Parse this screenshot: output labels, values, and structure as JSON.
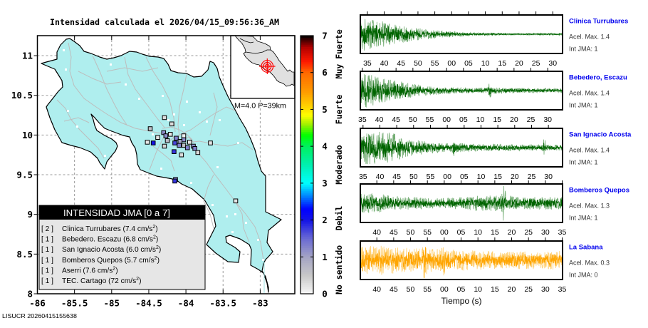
{
  "title": "Intensidad calculada el 2026/04/15_09:56:36_AM",
  "footer_id": "LISUCR 20260415155638",
  "map": {
    "lon_range": [
      -86,
      -82.534
    ],
    "lat_range": [
      8,
      11.252
    ],
    "x_ticks": [
      {
        "value": -86,
        "label": "-86"
      },
      {
        "value": -85.5,
        "label": "-85.5"
      },
      {
        "value": -85,
        "label": "-85"
      },
      {
        "value": -84.5,
        "label": "-84.5"
      },
      {
        "value": -84,
        "label": "-84"
      },
      {
        "value": -83.5,
        "label": "-83.5"
      },
      {
        "value": -83,
        "label": "-83"
      }
    ],
    "y_ticks": [
      {
        "value": 8,
        "label": "8"
      },
      {
        "value": 8.5,
        "label": "8.5"
      },
      {
        "value": 9,
        "label": "9"
      },
      {
        "value": 9.5,
        "label": "9.5"
      },
      {
        "value": 10,
        "label": "10"
      },
      {
        "value": 10.5,
        "label": "10.5"
      },
      {
        "value": 11,
        "label": "11"
      }
    ],
    "land_color": "#afeeee",
    "road_color": "#bdbdbd",
    "stations": [
      {
        "lon": -84.29,
        "lat": 10.22,
        "intensity": 0.3
      },
      {
        "lon": -84.19,
        "lat": 10.14,
        "intensity": 0.3
      },
      {
        "lon": -84.48,
        "lat": 10.08,
        "intensity": 0.6
      },
      {
        "lon": -84.38,
        "lat": 9.97,
        "intensity": 0.2
      },
      {
        "lon": -84.52,
        "lat": 9.91,
        "intensity": 0.2
      },
      {
        "lon": -84.44,
        "lat": 9.9,
        "intensity": 2.0
      },
      {
        "lon": -84.3,
        "lat": 10.03,
        "intensity": 1.2
      },
      {
        "lon": -84.27,
        "lat": 9.99,
        "intensity": 1.2
      },
      {
        "lon": -84.21,
        "lat": 10.01,
        "intensity": 0.2
      },
      {
        "lon": -84.25,
        "lat": 9.93,
        "intensity": 0.7
      },
      {
        "lon": -84.29,
        "lat": 9.86,
        "intensity": 0.4
      },
      {
        "lon": -84.13,
        "lat": 9.96,
        "intensity": 1.3
      },
      {
        "lon": -84.15,
        "lat": 9.9,
        "intensity": 1.7
      },
      {
        "lon": -84.09,
        "lat": 9.87,
        "intensity": 1.3
      },
      {
        "lon": -84.03,
        "lat": 9.87,
        "intensity": 0.6
      },
      {
        "lon": -83.98,
        "lat": 9.84,
        "intensity": 1.3
      },
      {
        "lon": -84.03,
        "lat": 9.99,
        "intensity": 0.1
      },
      {
        "lon": -84.03,
        "lat": 9.94,
        "intensity": 1.2
      },
      {
        "lon": -83.95,
        "lat": 9.91,
        "intensity": 0.2
      },
      {
        "lon": -83.9,
        "lat": 9.86,
        "intensity": 1.2
      },
      {
        "lon": -83.88,
        "lat": 9.83,
        "intensity": 1.3
      },
      {
        "lon": -83.84,
        "lat": 9.78,
        "intensity": 0.3
      },
      {
        "lon": -83.67,
        "lat": 9.9,
        "intensity": 0.2
      },
      {
        "lon": -84.16,
        "lat": 9.79,
        "intensity": 1.8
      },
      {
        "lon": -84.06,
        "lat": 9.75,
        "intensity": 0.3
      },
      {
        "lon": -84.14,
        "lat": 9.44,
        "intensity": 1.3
      },
      {
        "lon": -84.15,
        "lat": 9.42,
        "intensity": 1.8
      },
      {
        "lon": -83.33,
        "lat": 9.17,
        "intensity": 0.2
      },
      {
        "lon": -84.08,
        "lat": 9.92,
        "intensity": 1.0
      }
    ]
  },
  "inset": {
    "label": "M=4.0 P=39km",
    "land_color": "#e0e0e0",
    "epicenter_color": "#ff0000"
  },
  "legend": {
    "title": "INTENSIDAD JMA [0 a 7]",
    "entries": [
      {
        "bracket": "[ 2 ]",
        "label": "Clinica Turrubares (7.4 cm/s",
        "sup": "2",
        "tail": ")"
      },
      {
        "bracket": "[ 1 ]",
        "label": "Bebedero. Escazu (6.8 cm/s",
        "sup": "2",
        "tail": ")"
      },
      {
        "bracket": "[ 1 ]",
        "label": "San Ignacio Acosta (6.0 cm/s",
        "sup": "2",
        "tail": ")"
      },
      {
        "bracket": "[ 1 ]",
        "label": "Bomberos Quepos (5.7 cm/s",
        "sup": "2",
        "tail": ")"
      },
      {
        "bracket": "[ 1 ]",
        "label": "Aserri (7.6 cm/s",
        "sup": "2",
        "tail": ")"
      },
      {
        "bracket": "[ 1 ]",
        "label": "TEC. Cartago (72 cm/s",
        "sup": "2",
        "tail": ")"
      }
    ]
  },
  "colorbar": {
    "min": 0,
    "max": 7,
    "ticks": [
      {
        "value": 0,
        "label": "0"
      },
      {
        "value": 1,
        "label": "1"
      },
      {
        "value": 2,
        "label": "2"
      },
      {
        "value": 3,
        "label": "3"
      },
      {
        "value": 4,
        "label": "4"
      },
      {
        "value": 5,
        "label": "5"
      },
      {
        "value": 6,
        "label": "6"
      },
      {
        "value": 7,
        "label": "7"
      }
    ],
    "categories": [
      {
        "label": "Muy Fuerte",
        "level": 6.5
      },
      {
        "label": "Fuerte",
        "level": 5.0
      },
      {
        "label": "Moderado",
        "level": 3.5
      },
      {
        "label": "Debil",
        "level": 2.05
      },
      {
        "label": "No sentido",
        "level": 0.65
      }
    ],
    "stops": [
      {
        "v": 0,
        "c": "#f8f8f8"
      },
      {
        "v": 0.5,
        "c": "#c8c8c8"
      },
      {
        "v": 1,
        "c": "#a4a4c4"
      },
      {
        "v": 1.5,
        "c": "#6a6ad4"
      },
      {
        "v": 2,
        "c": "#1414e6"
      },
      {
        "v": 2.3,
        "c": "#0000ff"
      },
      {
        "v": 2.6,
        "c": "#0070ff"
      },
      {
        "v": 3,
        "c": "#00ffff"
      },
      {
        "v": 3.5,
        "c": "#00f0b0"
      },
      {
        "v": 4,
        "c": "#00f060"
      },
      {
        "v": 4.3,
        "c": "#00ff00"
      },
      {
        "v": 4.6,
        "c": "#a0f000"
      },
      {
        "v": 4.85,
        "c": "#ffff00"
      },
      {
        "v": 5.1,
        "c": "#ffd000"
      },
      {
        "v": 5.5,
        "c": "#ff9a00"
      },
      {
        "v": 6,
        "c": "#ff6a00"
      },
      {
        "v": 6.3,
        "c": "#ff1a00"
      },
      {
        "v": 6.7,
        "c": "#b00000"
      },
      {
        "v": 7,
        "c": "#000000"
      }
    ]
  },
  "waveforms": {
    "xlabel": "Tiempo (s)",
    "name_color": "#0000ee",
    "panels": [
      {
        "station": "Clinica Turrubares",
        "acel": "Acel. Max. 1.4",
        "int": "Int JMA: 1",
        "color": "#006400",
        "light_color": "#74ad74",
        "t_start": 32.9,
        "span": 60,
        "first_tick": 35,
        "tick_step": 5,
        "ticks": [
          "35",
          "40",
          "45",
          "50",
          "55",
          "00",
          "05",
          "10",
          "15",
          "20",
          "25",
          "30"
        ],
        "envelope": [
          1.0,
          0.8,
          0.55,
          0.4,
          0.28,
          0.18,
          0.12,
          0.08,
          0.06,
          0.05,
          0.05,
          0.05,
          0.05
        ],
        "spikes": []
      },
      {
        "station": "Bebedero, Escazu",
        "acel": "Acel. Max. 1.4",
        "int": "Int JMA: 1",
        "color": "#006400",
        "light_color": "#74ad74",
        "t_start": 34.4,
        "span": 60,
        "first_tick": 35,
        "tick_step": 5,
        "ticks": [
          "35",
          "40",
          "45",
          "50",
          "55",
          "00",
          "05",
          "10",
          "15",
          "20",
          "25",
          "30"
        ],
        "envelope": [
          1.0,
          0.85,
          0.6,
          0.4,
          0.28,
          0.2,
          0.16,
          0.15,
          0.17,
          0.14,
          0.14,
          0.12,
          0.12
        ],
        "spikes": [
          {
            "t": 72.8,
            "amp": 0.3
          }
        ]
      },
      {
        "station": "San Ignacio Acosta",
        "acel": "Acel. Max. 1.4",
        "int": "Int JMA: 1",
        "color": "#006400",
        "light_color": "#74ad74",
        "t_start": 34.2,
        "span": 60,
        "first_tick": 35,
        "tick_step": 5,
        "ticks": [
          "35",
          "40",
          "45",
          "50",
          "55",
          "00",
          "05",
          "10",
          "15",
          "20",
          "25",
          "30"
        ],
        "envelope": [
          0.9,
          1.0,
          0.8,
          0.5,
          0.35,
          0.25,
          0.25,
          0.2,
          0.2,
          0.18,
          0.18,
          0.16,
          0.16
        ],
        "spikes": [
          {
            "t": 61.8,
            "amp": 0.35
          },
          {
            "t": 88.8,
            "amp": 0.35
          }
        ]
      },
      {
        "station": "Bomberos Quepos",
        "acel": "Acel. Max. 1.3",
        "int": "Int JMA: 1",
        "color": "#006400",
        "light_color": "#74ad74",
        "t_start": 35.1,
        "span": 60,
        "first_tick": 40,
        "tick_step": 5,
        "ticks": [
          "40",
          "45",
          "50",
          "55",
          "00",
          "05",
          "10",
          "15",
          "20",
          "25",
          "30",
          "35"
        ],
        "envelope": [
          0.6,
          0.55,
          0.4,
          0.35,
          0.3,
          0.3,
          0.35,
          0.42,
          0.45,
          0.4,
          0.35,
          0.35,
          0.4
        ],
        "spikes": [
          {
            "t": 77.6,
            "amp": 0.9
          }
        ]
      },
      {
        "station": "La Sabana",
        "acel": "Acel. Max. 0.3",
        "int": "Int JMA: 0",
        "color": "#ffa500",
        "light_color": "#ffcf70",
        "t_start": 35.1,
        "span": 60,
        "first_tick": 40,
        "tick_step": 5,
        "ticks": [
          "40",
          "45",
          "50",
          "55",
          "00",
          "05",
          "10",
          "15",
          "20",
          "25",
          "30",
          "35"
        ],
        "envelope": [
          0.8,
          0.85,
          0.75,
          0.7,
          0.7,
          0.65,
          0.6,
          0.55,
          0.5,
          0.5,
          0.5,
          0.5,
          0.55
        ],
        "spikes": [
          {
            "t": 54.2,
            "amp": 0.7
          },
          {
            "t": 59.7,
            "amp": 0.3
          }
        ]
      }
    ]
  }
}
